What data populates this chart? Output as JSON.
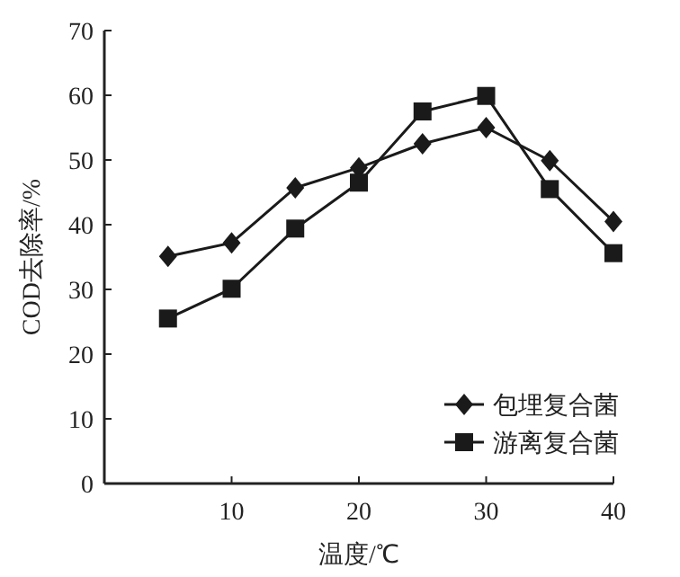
{
  "chart_data": {
    "type": "line",
    "xlabel": "温度/℃",
    "ylabel": "COD去除率/%",
    "x": [
      5,
      10,
      15,
      20,
      25,
      30,
      35,
      40
    ],
    "series": [
      {
        "name": "包埋复合菌",
        "color": "#1a1a1a",
        "marker": "diamond",
        "values": [
          35.1,
          37.2,
          45.7,
          48.8,
          52.5,
          55,
          49.9,
          40.5
        ]
      },
      {
        "name": "游离复合菌",
        "color": "#1a1a1a",
        "marker": "square",
        "values": [
          25.5,
          30.1,
          39.4,
          46.5,
          57.5,
          59.9,
          45.5,
          35.6
        ]
      }
    ],
    "xlim": [
      0,
      40
    ],
    "xticks": [
      10,
      20,
      30,
      40
    ],
    "ylim": [
      0,
      70
    ],
    "yticks": [
      0,
      10,
      20,
      30,
      40,
      50,
      60,
      70
    ],
    "grid": false,
    "legend": "bottom right"
  }
}
